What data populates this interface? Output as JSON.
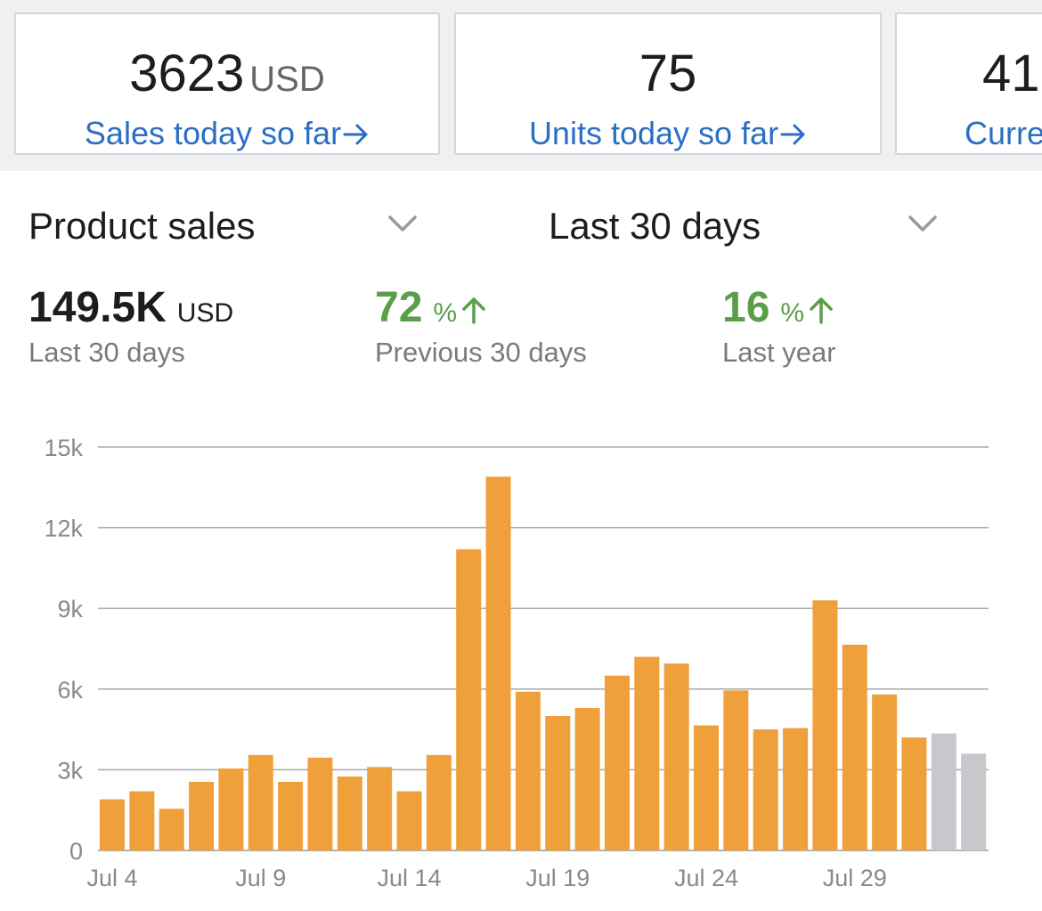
{
  "kpi_cards": [
    {
      "value": "3623",
      "unit": "USD",
      "link": "Sales today so far"
    },
    {
      "value": "75",
      "unit": "",
      "link": "Units today so far"
    },
    {
      "value": "41",
      "unit": "",
      "link": "Curre"
    }
  ],
  "selectors": {
    "metric": "Product sales",
    "range": "Last 30 days"
  },
  "summary": {
    "total_value": "149.5K",
    "total_unit": "USD",
    "total_label": "Last 30 days",
    "prev_pct": "72",
    "prev_pct_unit": "%",
    "prev_label": "Previous 30 days",
    "year_pct": "16",
    "year_pct_unit": "%",
    "year_label": "Last year"
  },
  "colors": {
    "link": "#2a6fc4",
    "positive": "#5a9e4a",
    "bar": "#f0a03a",
    "bar_projected": "#c8c8cc"
  },
  "chart_data": {
    "type": "bar",
    "categories": [
      "Jul 4",
      "Jul 5",
      "Jul 6",
      "Jul 7",
      "Jul 8",
      "Jul 9",
      "Jul 10",
      "Jul 11",
      "Jul 12",
      "Jul 13",
      "Jul 14",
      "Jul 15",
      "Jul 16",
      "Jul 17",
      "Jul 18",
      "Jul 19",
      "Jul 20",
      "Jul 21",
      "Jul 22",
      "Jul 23",
      "Jul 24",
      "Jul 25",
      "Jul 26",
      "Jul 27",
      "Jul 28",
      "Jul 29",
      "Jul 30",
      "Jul 31",
      "Aug 1",
      "Aug 2"
    ],
    "values": [
      1900,
      2200,
      1550,
      2550,
      3050,
      3550,
      2550,
      3450,
      2750,
      3100,
      2200,
      3550,
      11200,
      13900,
      5900,
      5000,
      5300,
      6500,
      7200,
      6950,
      4650,
      5950,
      4500,
      4550,
      9300,
      7650,
      5800,
      4200,
      4350,
      3600
    ],
    "projected": [
      false,
      false,
      false,
      false,
      false,
      false,
      false,
      false,
      false,
      false,
      false,
      false,
      false,
      false,
      false,
      false,
      false,
      false,
      false,
      false,
      false,
      false,
      false,
      false,
      false,
      false,
      false,
      false,
      true,
      true
    ],
    "x_tick_labels": [
      "Jul 4",
      "Jul 9",
      "Jul 14",
      "Jul 19",
      "Jul 24",
      "Jul 29"
    ],
    "x_tick_indices": [
      0,
      5,
      10,
      15,
      20,
      25
    ],
    "y_tick_labels": [
      "0",
      "3k",
      "6k",
      "9k",
      "12k",
      "15k"
    ],
    "y_tick_values": [
      0,
      3000,
      6000,
      9000,
      12000,
      15000
    ],
    "ylim": [
      0,
      15000
    ],
    "grid": true,
    "title": "",
    "xlabel": "",
    "ylabel": ""
  }
}
